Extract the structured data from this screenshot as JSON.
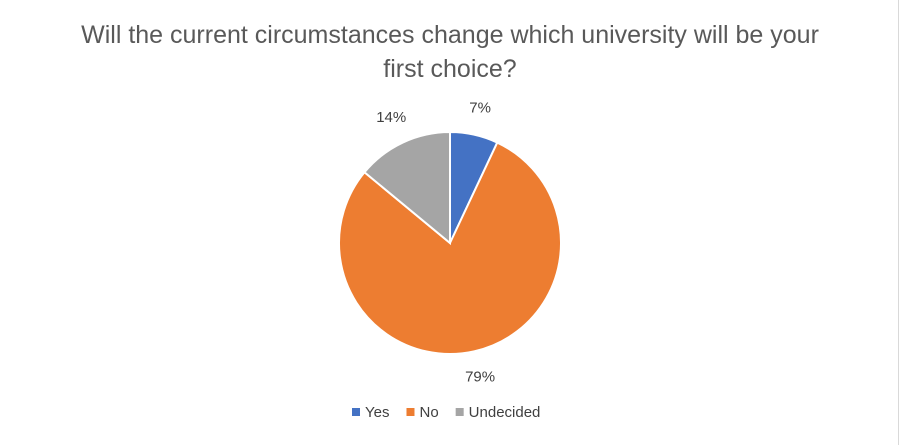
{
  "chart_data": {
    "type": "pie",
    "title": "Will the current circumstances change which university will be your first choice?",
    "categories": [
      "Yes",
      "No",
      "Undecided"
    ],
    "values": [
      7,
      79,
      14
    ],
    "value_labels": [
      "7%",
      "79%",
      "14%"
    ],
    "colors": [
      "#4472c4",
      "#ed7d31",
      "#a5a5a5"
    ],
    "legend": "bottom"
  }
}
